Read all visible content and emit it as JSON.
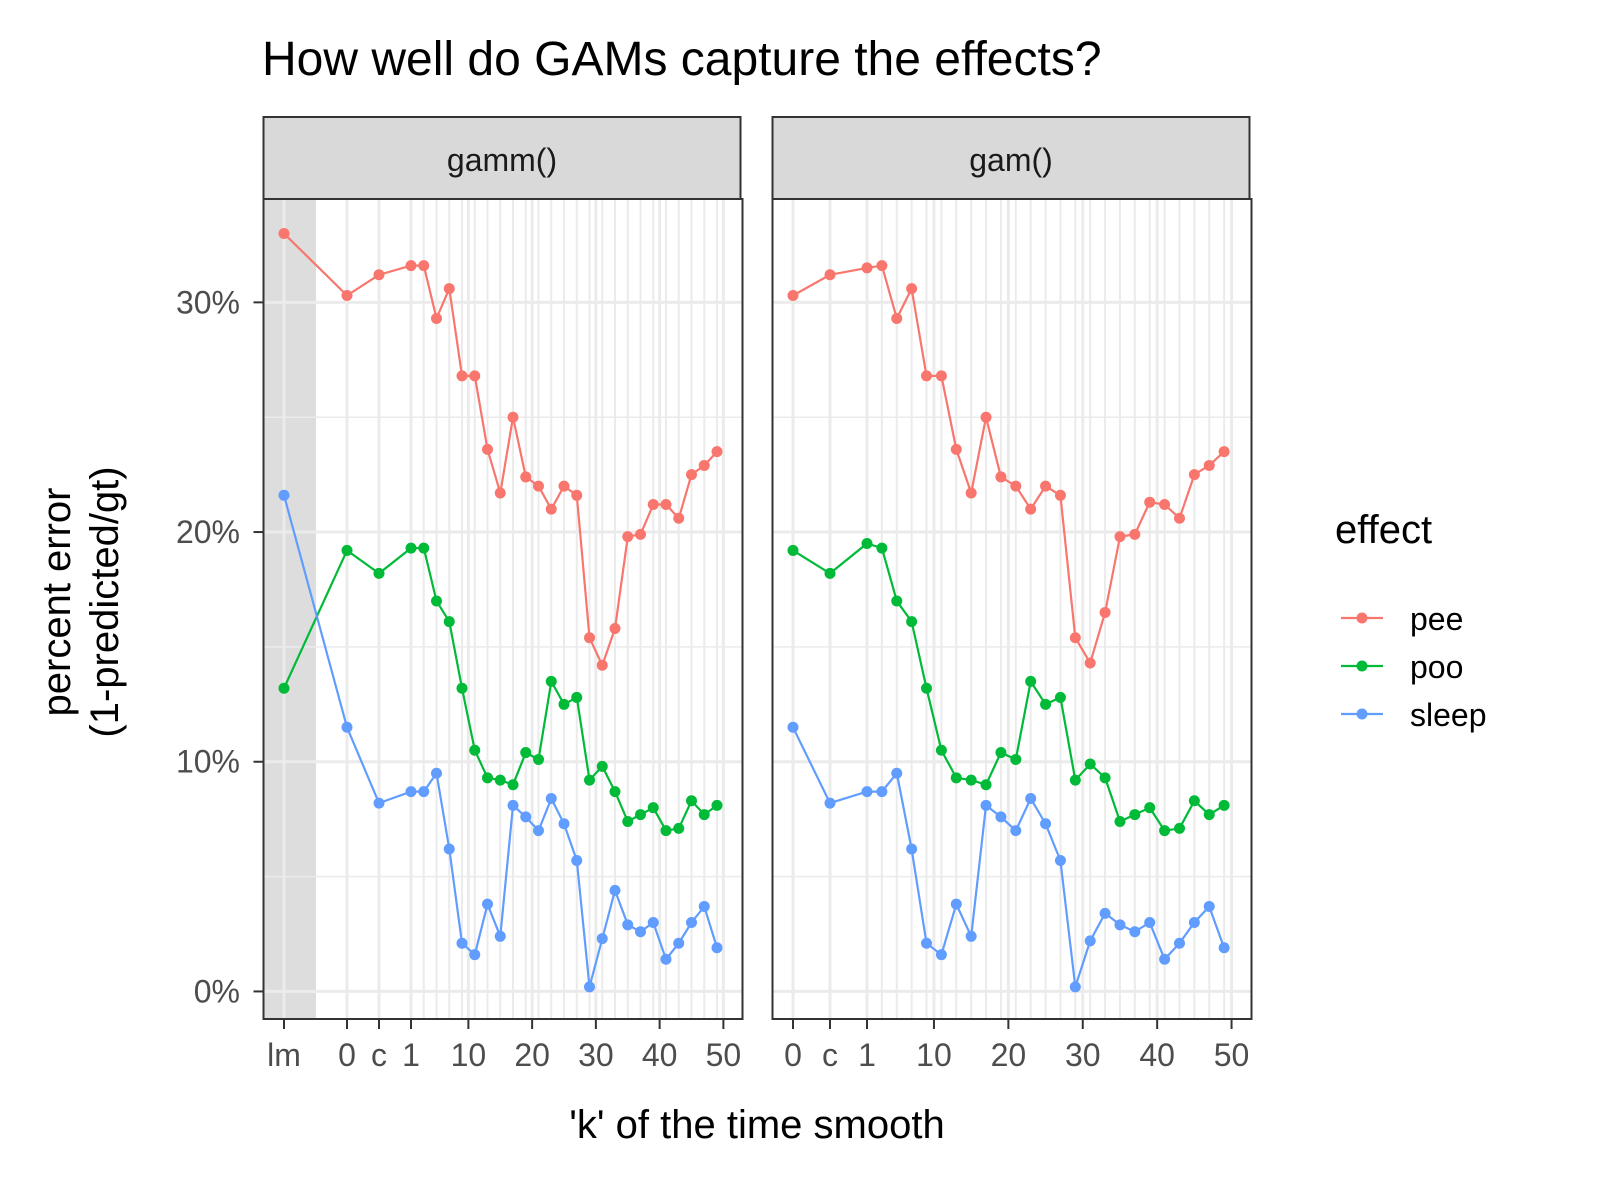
{
  "chart_data": {
    "type": "line",
    "title": "How well do GAMs capture the effects?",
    "xlabel": "'k' of the time smooth",
    "ylabel_lines": [
      "percent error",
      "(1-predicted/gt)"
    ],
    "ylim": [
      -0.012,
      0.345
    ],
    "y_ticks": [
      {
        "value": 0,
        "label": "0%"
      },
      {
        "value": 0.1,
        "label": "10%"
      },
      {
        "value": 0.2,
        "label": "20%"
      },
      {
        "value": 0.3,
        "label": "30%"
      }
    ],
    "legend": {
      "title": "effect",
      "position": "right",
      "entries": [
        {
          "name": "pee",
          "color": "#F8766D"
        },
        {
          "name": "poo",
          "color": "#00BA38"
        },
        {
          "name": "sleep",
          "color": "#619CFF"
        }
      ]
    },
    "colors": {
      "pee": "#F8766D",
      "poo": "#00BA38",
      "sleep": "#619CFF",
      "strip_fill": "#D9D9D9",
      "grid": "#EBEBEB",
      "lm_shade": "#DDDDDD"
    },
    "k_positions": [
      "lm",
      "0",
      "c",
      "1",
      3,
      5,
      7,
      9,
      11,
      13,
      15,
      17,
      19,
      21,
      23,
      25,
      27,
      29,
      31,
      33,
      35,
      37,
      39,
      41,
      43,
      45,
      47,
      49
    ],
    "panels": [
      {
        "name": "gamm()",
        "x_ticks": [
          {
            "position": "lm",
            "label": "lm"
          },
          {
            "position": "0",
            "label": "0"
          },
          {
            "position": "c",
            "label": "c"
          },
          {
            "position": "1",
            "label": "1"
          },
          {
            "position": 10,
            "label": "10"
          },
          {
            "position": 20,
            "label": "20"
          },
          {
            "position": 30,
            "label": "30"
          },
          {
            "position": 40,
            "label": "40"
          },
          {
            "position": 50,
            "label": "50"
          }
        ],
        "series": [
          {
            "name": "pee",
            "points": [
              [
                "lm",
                0.33
              ],
              [
                "0",
                0.303
              ],
              [
                "c",
                0.312
              ],
              [
                "1",
                0.316
              ],
              [
                3,
                0.316
              ],
              [
                5,
                0.293
              ],
              [
                7,
                0.306
              ],
              [
                9,
                0.268
              ],
              [
                11,
                0.268
              ],
              [
                13,
                0.236
              ],
              [
                15,
                0.217
              ],
              [
                17,
                0.25
              ],
              [
                19,
                0.224
              ],
              [
                21,
                0.22
              ],
              [
                23,
                0.21
              ],
              [
                25,
                0.22
              ],
              [
                27,
                0.216
              ],
              [
                29,
                0.154
              ],
              [
                31,
                0.142
              ],
              [
                33,
                0.158
              ],
              [
                35,
                0.198
              ],
              [
                37,
                0.199
              ],
              [
                39,
                0.212
              ],
              [
                41,
                0.212
              ],
              [
                43,
                0.206
              ],
              [
                45,
                0.225
              ],
              [
                47,
                0.229
              ],
              [
                49,
                0.235
              ]
            ]
          },
          {
            "name": "poo",
            "points": [
              [
                "lm",
                0.132
              ],
              [
                "0",
                0.192
              ],
              [
                "c",
                0.182
              ],
              [
                "1",
                0.193
              ],
              [
                3,
                0.193
              ],
              [
                5,
                0.17
              ],
              [
                7,
                0.161
              ],
              [
                9,
                0.132
              ],
              [
                11,
                0.105
              ],
              [
                13,
                0.093
              ],
              [
                15,
                0.092
              ],
              [
                17,
                0.09
              ],
              [
                19,
                0.104
              ],
              [
                21,
                0.101
              ],
              [
                23,
                0.135
              ],
              [
                25,
                0.125
              ],
              [
                27,
                0.128
              ],
              [
                29,
                0.092
              ],
              [
                31,
                0.098
              ],
              [
                33,
                0.087
              ],
              [
                35,
                0.074
              ],
              [
                37,
                0.077
              ],
              [
                39,
                0.08
              ],
              [
                41,
                0.07
              ],
              [
                43,
                0.071
              ],
              [
                45,
                0.083
              ],
              [
                47,
                0.077
              ],
              [
                49,
                0.081
              ]
            ]
          },
          {
            "name": "sleep",
            "points": [
              [
                "lm",
                0.216
              ],
              [
                "0",
                0.115
              ],
              [
                "c",
                0.082
              ],
              [
                "1",
                0.087
              ],
              [
                3,
                0.087
              ],
              [
                5,
                0.095
              ],
              [
                7,
                0.062
              ],
              [
                9,
                0.021
              ],
              [
                11,
                0.016
              ],
              [
                13,
                0.038
              ],
              [
                15,
                0.024
              ],
              [
                17,
                0.081
              ],
              [
                19,
                0.076
              ],
              [
                21,
                0.07
              ],
              [
                23,
                0.084
              ],
              [
                25,
                0.073
              ],
              [
                27,
                0.057
              ],
              [
                29,
                0.002
              ],
              [
                31,
                0.023
              ],
              [
                33,
                0.044
              ],
              [
                35,
                0.029
              ],
              [
                37,
                0.026
              ],
              [
                39,
                0.03
              ],
              [
                41,
                0.014
              ],
              [
                43,
                0.021
              ],
              [
                45,
                0.03
              ],
              [
                47,
                0.037
              ],
              [
                49,
                0.019
              ]
            ]
          }
        ]
      },
      {
        "name": "gam()",
        "x_ticks": [
          {
            "position": "0",
            "label": "0"
          },
          {
            "position": "c",
            "label": "c"
          },
          {
            "position": "1",
            "label": "1"
          },
          {
            "position": 10,
            "label": "10"
          },
          {
            "position": 20,
            "label": "20"
          },
          {
            "position": 30,
            "label": "30"
          },
          {
            "position": 40,
            "label": "40"
          },
          {
            "position": 50,
            "label": "50"
          }
        ],
        "series": [
          {
            "name": "pee",
            "points": [
              [
                "0",
                0.303
              ],
              [
                "c",
                0.312
              ],
              [
                "1",
                0.315
              ],
              [
                3,
                0.316
              ],
              [
                5,
                0.293
              ],
              [
                7,
                0.306
              ],
              [
                9,
                0.268
              ],
              [
                11,
                0.268
              ],
              [
                13,
                0.236
              ],
              [
                15,
                0.217
              ],
              [
                17,
                0.25
              ],
              [
                19,
                0.224
              ],
              [
                21,
                0.22
              ],
              [
                23,
                0.21
              ],
              [
                25,
                0.22
              ],
              [
                27,
                0.216
              ],
              [
                29,
                0.154
              ],
              [
                31,
                0.143
              ],
              [
                33,
                0.165
              ],
              [
                35,
                0.198
              ],
              [
                37,
                0.199
              ],
              [
                39,
                0.213
              ],
              [
                41,
                0.212
              ],
              [
                43,
                0.206
              ],
              [
                45,
                0.225
              ],
              [
                47,
                0.229
              ],
              [
                49,
                0.235
              ]
            ]
          },
          {
            "name": "poo",
            "points": [
              [
                "0",
                0.192
              ],
              [
                "c",
                0.182
              ],
              [
                "1",
                0.195
              ],
              [
                3,
                0.193
              ],
              [
                5,
                0.17
              ],
              [
                7,
                0.161
              ],
              [
                9,
                0.132
              ],
              [
                11,
                0.105
              ],
              [
                13,
                0.093
              ],
              [
                15,
                0.092
              ],
              [
                17,
                0.09
              ],
              [
                19,
                0.104
              ],
              [
                21,
                0.101
              ],
              [
                23,
                0.135
              ],
              [
                25,
                0.125
              ],
              [
                27,
                0.128
              ],
              [
                29,
                0.092
              ],
              [
                31,
                0.099
              ],
              [
                33,
                0.093
              ],
              [
                35,
                0.074
              ],
              [
                37,
                0.077
              ],
              [
                39,
                0.08
              ],
              [
                41,
                0.07
              ],
              [
                43,
                0.071
              ],
              [
                45,
                0.083
              ],
              [
                47,
                0.077
              ],
              [
                49,
                0.081
              ]
            ]
          },
          {
            "name": "sleep",
            "points": [
              [
                "0",
                0.115
              ],
              [
                "c",
                0.082
              ],
              [
                "1",
                0.087
              ],
              [
                3,
                0.087
              ],
              [
                5,
                0.095
              ],
              [
                7,
                0.062
              ],
              [
                9,
                0.021
              ],
              [
                11,
                0.016
              ],
              [
                13,
                0.038
              ],
              [
                15,
                0.024
              ],
              [
                17,
                0.081
              ],
              [
                19,
                0.076
              ],
              [
                21,
                0.07
              ],
              [
                23,
                0.084
              ],
              [
                25,
                0.073
              ],
              [
                27,
                0.057
              ],
              [
                29,
                0.002
              ],
              [
                31,
                0.022
              ],
              [
                33,
                0.034
              ],
              [
                35,
                0.029
              ],
              [
                37,
                0.026
              ],
              [
                39,
                0.03
              ],
              [
                41,
                0.014
              ],
              [
                43,
                0.021
              ],
              [
                45,
                0.03
              ],
              [
                47,
                0.037
              ],
              [
                49,
                0.019
              ]
            ]
          }
        ]
      }
    ]
  }
}
